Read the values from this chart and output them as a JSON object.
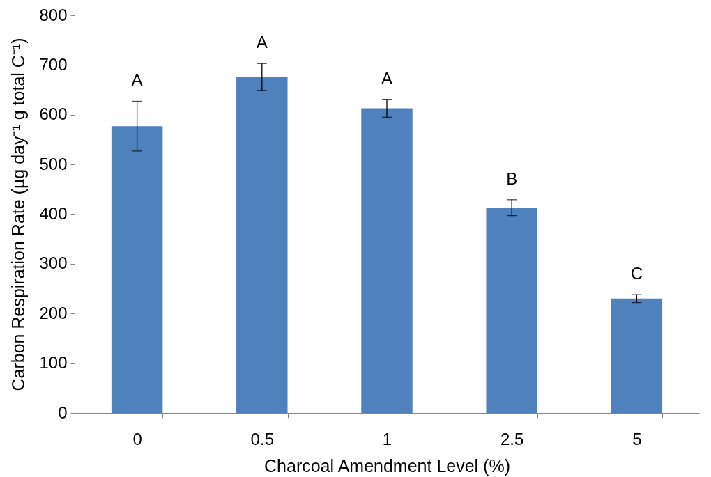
{
  "chart_data": {
    "type": "bar",
    "categories": [
      "0",
      "0.5",
      "1",
      "2.5",
      "5"
    ],
    "values": [
      577,
      676,
      613,
      413,
      230
    ],
    "errors": [
      50,
      27,
      18,
      16,
      8
    ],
    "color": "#4f81bd",
    "xlabel": "Charcoal Amendment Level (%)",
    "ylabel": "Carbon Respiration Rate (µg day⁻¹ g total C⁻¹)",
    "ylim": [
      0,
      800
    ],
    "yticks": [
      0,
      100,
      200,
      300,
      400,
      500,
      600,
      700,
      800
    ],
    "grid": false,
    "annotations": [
      {
        "text": "A",
        "x": "0",
        "y": 577
      },
      {
        "text": "A",
        "x": "0.5",
        "y": 676
      },
      {
        "text": "A",
        "x": "1",
        "y": 613
      },
      {
        "text": "B",
        "x": "2.5",
        "y": 413
      },
      {
        "text": "C",
        "x": "5",
        "y": 230
      }
    ]
  }
}
